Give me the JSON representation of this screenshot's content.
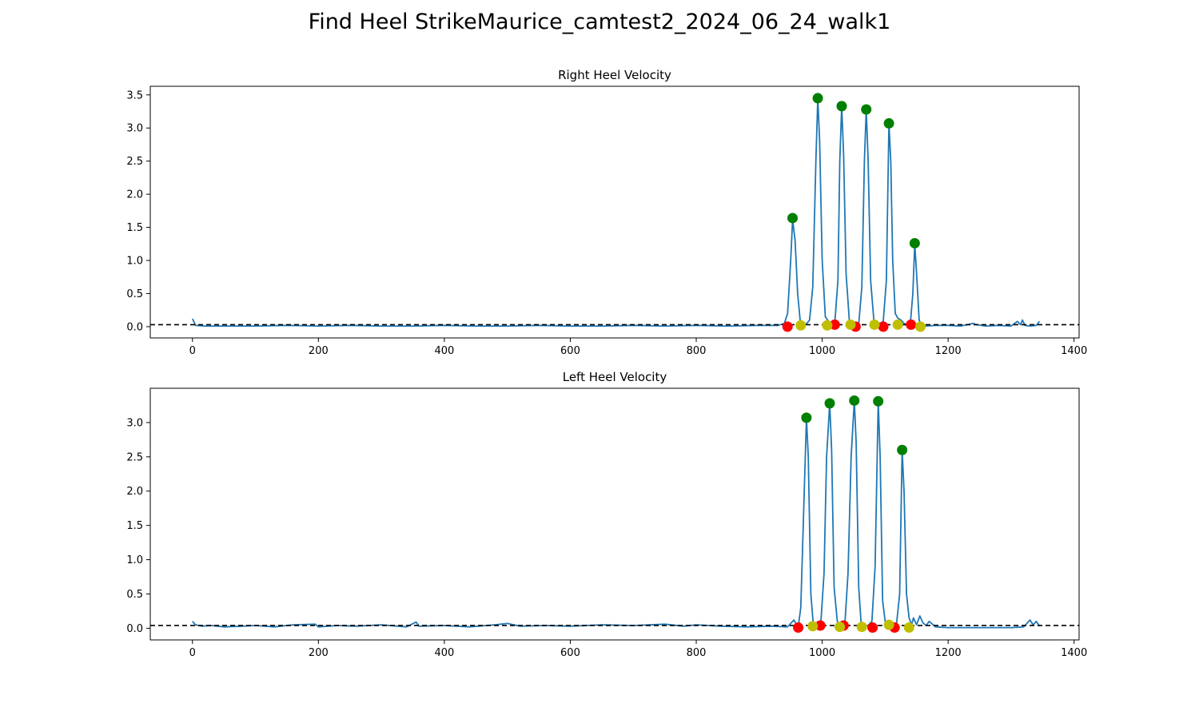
{
  "figure": {
    "suptitle": "Find Heel StrikeMaurice_camtest2_2024_06_24_walk1"
  },
  "chart_data": [
    {
      "type": "line",
      "title": "Right Heel Velocity",
      "xlabel": "",
      "ylabel": "",
      "xlim": [
        -67,
        1408
      ],
      "ylim": [
        -0.17,
        3.63
      ],
      "xticks": [
        0,
        200,
        400,
        600,
        800,
        1000,
        1200,
        1400
      ],
      "yticks": [
        0.0,
        0.5,
        1.0,
        1.5,
        2.0,
        2.5,
        3.0,
        3.5
      ],
      "threshold": 0.03,
      "grid": false,
      "line_color": "#1f77b4",
      "series": [
        {
          "x": [
            0,
            5,
            20,
            50,
            100,
            150,
            200,
            250,
            300,
            350,
            400,
            450,
            500,
            550,
            600,
            650,
            700,
            750,
            800,
            850,
            900,
            930,
            940,
            945,
            950,
            953,
            957,
            961,
            965,
            970,
            975,
            980,
            985,
            990,
            993,
            996,
            1000,
            1005,
            1010,
            1015,
            1020,
            1025,
            1028,
            1031,
            1034,
            1038,
            1043,
            1048,
            1053,
            1058,
            1063,
            1067,
            1070,
            1073,
            1077,
            1082,
            1087,
            1092,
            1097,
            1102,
            1106,
            1109,
            1112,
            1116,
            1120,
            1125,
            1130,
            1135,
            1140,
            1144,
            1147,
            1150,
            1154,
            1158,
            1165,
            1180,
            1200,
            1220,
            1240,
            1245,
            1260,
            1280,
            1300,
            1310,
            1315,
            1318,
            1322,
            1330,
            1340,
            1345
          ],
          "y": [
            0.12,
            0.02,
            0.01,
            0.01,
            0.01,
            0.02,
            0.01,
            0.02,
            0.01,
            0.01,
            0.02,
            0.01,
            0.01,
            0.02,
            0.01,
            0.01,
            0.02,
            0.01,
            0.02,
            0.01,
            0.02,
            0.02,
            0.05,
            0.2,
            1.0,
            1.62,
            1.3,
            0.5,
            0.1,
            0.05,
            0.04,
            0.1,
            0.6,
            2.5,
            3.45,
            2.8,
            1.0,
            0.15,
            0.08,
            0.03,
            0.05,
            0.7,
            2.5,
            3.33,
            2.6,
            0.8,
            0.1,
            0.05,
            0.03,
            0.04,
            0.6,
            2.5,
            3.28,
            2.5,
            0.7,
            0.1,
            0.06,
            0.05,
            0.08,
            0.7,
            3.07,
            2.5,
            1.0,
            0.2,
            0.13,
            0.1,
            0.05,
            0.03,
            0.05,
            0.5,
            1.25,
            0.8,
            0.1,
            0.01,
            0.01,
            0.02,
            0.02,
            0.01,
            0.05,
            0.03,
            0.01,
            0.02,
            0.01,
            0.08,
            0.03,
            0.1,
            0.02,
            0.01,
            0.02,
            0.08
          ]
        }
      ],
      "markers": {
        "green": {
          "color": "#008000",
          "points": [
            [
              953,
              1.64
            ],
            [
              993,
              3.45
            ],
            [
              1031,
              3.33
            ],
            [
              1070,
              3.28
            ],
            [
              1106,
              3.07
            ],
            [
              1147,
              1.26
            ]
          ]
        },
        "red": {
          "color": "#ff0000",
          "points": [
            [
              945,
              0.0
            ],
            [
              1020,
              0.03
            ],
            [
              1053,
              0.0
            ],
            [
              1097,
              0.0
            ],
            [
              1141,
              0.03
            ]
          ]
        },
        "yellow": {
          "color": "#bfbf00",
          "points": [
            [
              966,
              0.02
            ],
            [
              1008,
              0.02
            ],
            [
              1045,
              0.03
            ],
            [
              1083,
              0.03
            ],
            [
              1120,
              0.03
            ],
            [
              1156,
              0.0
            ]
          ]
        }
      }
    },
    {
      "type": "line",
      "title": "Left Heel Velocity",
      "xlabel": "",
      "ylabel": "",
      "xlim": [
        -67,
        1408
      ],
      "ylim": [
        -0.17,
        3.5
      ],
      "xticks": [
        0,
        200,
        400,
        600,
        800,
        1000,
        1200,
        1400
      ],
      "yticks": [
        0.0,
        0.5,
        1.0,
        1.5,
        2.0,
        2.5,
        3.0
      ],
      "threshold": 0.04,
      "grid": false,
      "line_color": "#1f77b4",
      "series": [
        {
          "x": [
            0,
            5,
            15,
            30,
            50,
            80,
            100,
            130,
            160,
            195,
            200,
            230,
            260,
            300,
            340,
            355,
            360,
            400,
            440,
            480,
            500,
            520,
            560,
            600,
            650,
            700,
            750,
            780,
            800,
            840,
            880,
            920,
            945,
            955,
            962,
            966,
            970,
            975,
            978,
            982,
            986,
            992,
            998,
            1003,
            1007,
            1012,
            1015,
            1019,
            1024,
            1030,
            1036,
            1041,
            1046,
            1051,
            1054,
            1058,
            1062,
            1068,
            1074,
            1079,
            1084,
            1089,
            1092,
            1096,
            1100,
            1106,
            1112,
            1118,
            1123,
            1127,
            1130,
            1134,
            1138,
            1142,
            1145,
            1150,
            1155,
            1160,
            1165,
            1170,
            1180,
            1200,
            1250,
            1300,
            1320,
            1330,
            1335,
            1340,
            1345
          ],
          "y": [
            0.1,
            0.05,
            0.03,
            0.04,
            0.02,
            0.03,
            0.04,
            0.02,
            0.05,
            0.06,
            0.02,
            0.04,
            0.03,
            0.05,
            0.02,
            0.09,
            0.03,
            0.04,
            0.02,
            0.05,
            0.07,
            0.03,
            0.04,
            0.03,
            0.05,
            0.04,
            0.06,
            0.03,
            0.05,
            0.03,
            0.02,
            0.03,
            0.02,
            0.12,
            0.02,
            0.3,
            1.5,
            3.07,
            2.5,
            0.5,
            0.05,
            0.02,
            0.1,
            0.8,
            2.5,
            3.28,
            2.6,
            0.6,
            0.1,
            0.02,
            0.05,
            0.8,
            2.5,
            3.32,
            2.7,
            0.6,
            0.05,
            0.02,
            0.05,
            0.1,
            0.9,
            3.31,
            2.5,
            0.4,
            0.1,
            0.05,
            0.02,
            0.05,
            0.5,
            2.6,
            2.0,
            0.5,
            0.15,
            0.05,
            0.15,
            0.05,
            0.18,
            0.08,
            0.04,
            0.1,
            0.02,
            0.01,
            0.01,
            0.01,
            0.02,
            0.12,
            0.05,
            0.1,
            0.03
          ]
        }
      ],
      "markers": {
        "green": {
          "color": "#008000",
          "points": [
            [
              975,
              3.07
            ],
            [
              1012,
              3.28
            ],
            [
              1051,
              3.32
            ],
            [
              1089,
              3.31
            ],
            [
              1127,
              2.6
            ]
          ]
        },
        "red": {
          "color": "#ff0000",
          "points": [
            [
              962,
              0.01
            ],
            [
              997,
              0.04
            ],
            [
              1034,
              0.04
            ],
            [
              1080,
              0.01
            ],
            [
              1115,
              0.01
            ]
          ]
        },
        "yellow": {
          "color": "#bfbf00",
          "points": [
            [
              985,
              0.03
            ],
            [
              1028,
              0.02
            ],
            [
              1063,
              0.02
            ],
            [
              1106,
              0.05
            ],
            [
              1138,
              0.01
            ]
          ]
        }
      }
    }
  ]
}
